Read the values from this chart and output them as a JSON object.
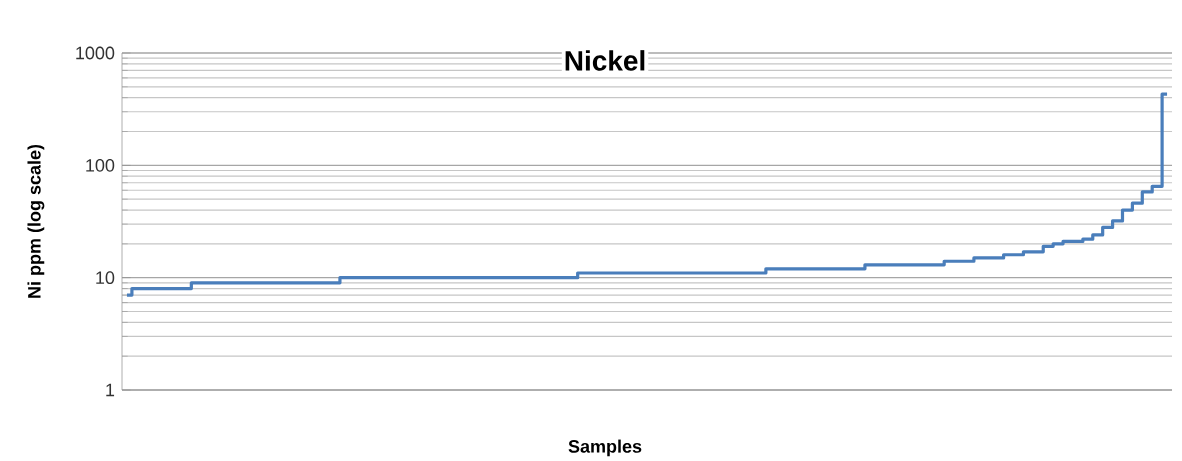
{
  "chart_data": {
    "type": "step",
    "title": "Nickel",
    "xlabel": "Samples",
    "ylabel": "Ni ppm (log scale)",
    "categories": [
      null,
      null,
      null,
      null,
      null,
      null,
      null,
      null,
      null,
      null,
      null,
      null,
      null,
      null,
      null,
      null,
      null,
      null,
      null,
      null,
      null,
      null,
      null,
      null,
      null,
      null,
      null,
      null,
      null,
      null,
      null,
      null,
      null,
      null,
      null,
      null,
      null,
      null,
      null,
      null,
      null,
      null,
      null,
      null,
      null,
      null,
      null,
      null,
      null,
      null,
      null,
      null,
      null,
      null,
      null,
      null,
      null,
      null,
      null,
      null,
      null,
      null,
      null,
      null,
      null,
      null,
      null,
      null,
      null,
      null,
      null,
      null,
      null,
      null,
      null,
      null,
      null,
      null,
      null,
      null,
      null,
      null,
      null,
      null,
      null,
      null,
      null,
      null,
      null,
      null,
      null,
      null,
      null,
      null,
      null,
      null,
      null,
      null,
      null,
      null,
      null,
      null,
      null,
      null,
      null,
      null
    ],
    "values": [
      7,
      8,
      8,
      8,
      8,
      8,
      8,
      9,
      9,
      9,
      9,
      9,
      9,
      9,
      9,
      9,
      9,
      9,
      9,
      9,
      9,
      9,
      10,
      10,
      10,
      10,
      10,
      10,
      10,
      10,
      10,
      10,
      10,
      10,
      10,
      10,
      10,
      10,
      10,
      10,
      10,
      10,
      10,
      10,
      10,
      10,
      11,
      11,
      11,
      11,
      11,
      11,
      11,
      11,
      11,
      11,
      11,
      11,
      11,
      11,
      11,
      11,
      11,
      11,
      11,
      12,
      12,
      12,
      12,
      12,
      12,
      12,
      12,
      12,
      12,
      13,
      13,
      13,
      13,
      13,
      13,
      13,
      13,
      14,
      14,
      14,
      15,
      15,
      15,
      16,
      16,
      17,
      17,
      19,
      20,
      21,
      21,
      22,
      24,
      28,
      32,
      40,
      46,
      58,
      65,
      430
    ],
    "color": "#4a7ebb",
    "log": true,
    "ylim": [
      1,
      1000
    ],
    "yticks": [
      1,
      10,
      100,
      1000
    ],
    "grid": "y",
    "line_style": "solid"
  }
}
